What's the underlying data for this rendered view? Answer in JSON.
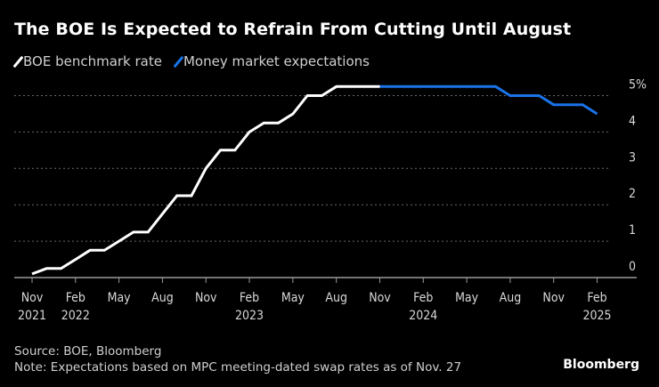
{
  "title": "The BOE Is Expected to Refrain From Cutting Until August",
  "legend": [
    {
      "label": "BOE benchmark rate",
      "color": "#ffffff"
    },
    {
      "label": "Money market expectations",
      "color": "#1a73e8"
    }
  ],
  "footer": {
    "source": "Source: BOE, Bloomberg",
    "note": "Note: Expectations based on MPC meeting-dated swap rates as of Nov. 27"
  },
  "logo": "Bloomberg",
  "chart_data": {
    "type": "line",
    "title": "The BOE Is Expected to Refrain From Cutting Until August",
    "ylim": [
      0,
      5
    ],
    "yticks": [
      {
        "value": 0,
        "label": "0"
      },
      {
        "value": 1,
        "label": "1"
      },
      {
        "value": 2,
        "label": "2"
      },
      {
        "value": 3,
        "label": "3"
      },
      {
        "value": 4,
        "label": "4"
      },
      {
        "value": 5,
        "label": "5%"
      }
    ],
    "xlim": [
      "2021-10",
      "2025-04"
    ],
    "xticks": [
      {
        "date": "2021-11",
        "month": "Nov",
        "year": "2021"
      },
      {
        "date": "2022-02",
        "month": "Feb",
        "year": "2022"
      },
      {
        "date": "2022-05",
        "month": "May",
        "year": ""
      },
      {
        "date": "2022-08",
        "month": "Aug",
        "year": ""
      },
      {
        "date": "2022-11",
        "month": "Nov",
        "year": ""
      },
      {
        "date": "2023-02",
        "month": "Feb",
        "year": "2023"
      },
      {
        "date": "2023-05",
        "month": "May",
        "year": ""
      },
      {
        "date": "2023-08",
        "month": "Aug",
        "year": ""
      },
      {
        "date": "2023-11",
        "month": "Nov",
        "year": ""
      },
      {
        "date": "2024-02",
        "month": "Feb",
        "year": "2024"
      },
      {
        "date": "2024-05",
        "month": "May",
        "year": ""
      },
      {
        "date": "2024-08",
        "month": "Aug",
        "year": ""
      },
      {
        "date": "2024-11",
        "month": "Nov",
        "year": ""
      },
      {
        "date": "2025-02",
        "month": "Feb",
        "year": "2025"
      }
    ],
    "grid": true,
    "legend_position": "top-left",
    "series": [
      {
        "name": "BOE benchmark rate",
        "color": "#ffffff",
        "x": [
          "2021-11",
          "2021-12",
          "2022-01",
          "2022-02",
          "2022-03",
          "2022-04",
          "2022-05",
          "2022-06",
          "2022-07",
          "2022-08",
          "2022-09",
          "2022-10",
          "2022-11",
          "2022-12",
          "2023-01",
          "2023-02",
          "2023-03",
          "2023-04",
          "2023-05",
          "2023-06",
          "2023-07",
          "2023-08",
          "2023-09",
          "2023-10",
          "2023-11"
        ],
        "y": [
          0.1,
          0.25,
          0.25,
          0.5,
          0.75,
          0.75,
          1.0,
          1.25,
          1.25,
          1.75,
          2.25,
          2.25,
          3.0,
          3.5,
          3.5,
          4.0,
          4.25,
          4.25,
          4.5,
          5.0,
          5.0,
          5.25,
          5.25,
          5.25,
          5.25
        ]
      },
      {
        "name": "Money market expectations",
        "color": "#1a73e8",
        "x": [
          "2023-11",
          "2023-12",
          "2024-01",
          "2024-02",
          "2024-03",
          "2024-04",
          "2024-05",
          "2024-06",
          "2024-07",
          "2024-08",
          "2024-09",
          "2024-10",
          "2024-11",
          "2024-12",
          "2025-01",
          "2025-02"
        ],
        "y": [
          5.25,
          5.25,
          5.25,
          5.25,
          5.25,
          5.25,
          5.25,
          5.25,
          5.25,
          5.0,
          5.0,
          5.0,
          4.75,
          4.75,
          4.75,
          4.5
        ]
      }
    ]
  }
}
